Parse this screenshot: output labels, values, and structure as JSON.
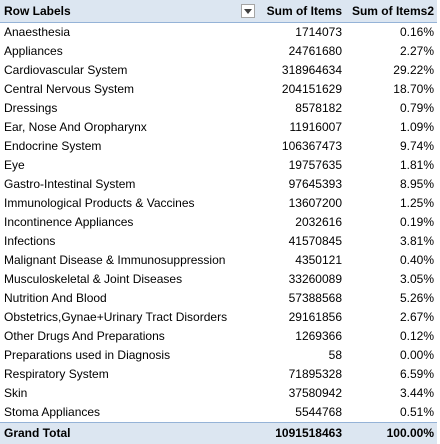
{
  "pivot": {
    "headers": {
      "row_labels": "Row Labels",
      "sum_items": "Sum of Items",
      "sum_items2": "Sum of Items2"
    },
    "filter_icon": "dropdown-arrow-icon",
    "rows": [
      {
        "label": "Anaesthesia",
        "items": "1714073",
        "items2": "0.16%"
      },
      {
        "label": "Appliances",
        "items": "24761680",
        "items2": "2.27%"
      },
      {
        "label": "Cardiovascular System",
        "items": "318964634",
        "items2": "29.22%"
      },
      {
        "label": "Central Nervous System",
        "items": "204151629",
        "items2": "18.70%"
      },
      {
        "label": "Dressings",
        "items": "8578182",
        "items2": "0.79%"
      },
      {
        "label": "Ear, Nose And Oropharynx",
        "items": "11916007",
        "items2": "1.09%"
      },
      {
        "label": "Endocrine System",
        "items": "106367473",
        "items2": "9.74%"
      },
      {
        "label": "Eye",
        "items": "19757635",
        "items2": "1.81%"
      },
      {
        "label": "Gastro-Intestinal System",
        "items": "97645393",
        "items2": "8.95%"
      },
      {
        "label": "Immunological Products & Vaccines",
        "items": "13607200",
        "items2": "1.25%"
      },
      {
        "label": "Incontinence Appliances",
        "items": "2032616",
        "items2": "0.19%"
      },
      {
        "label": "Infections",
        "items": "41570845",
        "items2": "3.81%"
      },
      {
        "label": "Malignant Disease & Immunosuppression",
        "items": "4350121",
        "items2": "0.40%"
      },
      {
        "label": "Musculoskeletal & Joint Diseases",
        "items": "33260089",
        "items2": "3.05%"
      },
      {
        "label": "Nutrition And Blood",
        "items": "57388568",
        "items2": "5.26%"
      },
      {
        "label": "Obstetrics,Gynae+Urinary Tract Disorders",
        "items": "29161856",
        "items2": "2.67%"
      },
      {
        "label": "Other Drugs And Preparations",
        "items": "1269366",
        "items2": "0.12%"
      },
      {
        "label": "Preparations used in Diagnosis",
        "items": "58",
        "items2": "0.00%"
      },
      {
        "label": "Respiratory System",
        "items": "71895328",
        "items2": "6.59%"
      },
      {
        "label": "Skin",
        "items": "37580942",
        "items2": "3.44%"
      },
      {
        "label": "Stoma Appliances",
        "items": "5544768",
        "items2": "0.51%"
      }
    ],
    "total": {
      "label": "Grand Total",
      "items": "1091518463",
      "items2": "100.00%"
    },
    "colors": {
      "header_bg": "#dce6f1",
      "header_border": "#95b3d7"
    }
  }
}
